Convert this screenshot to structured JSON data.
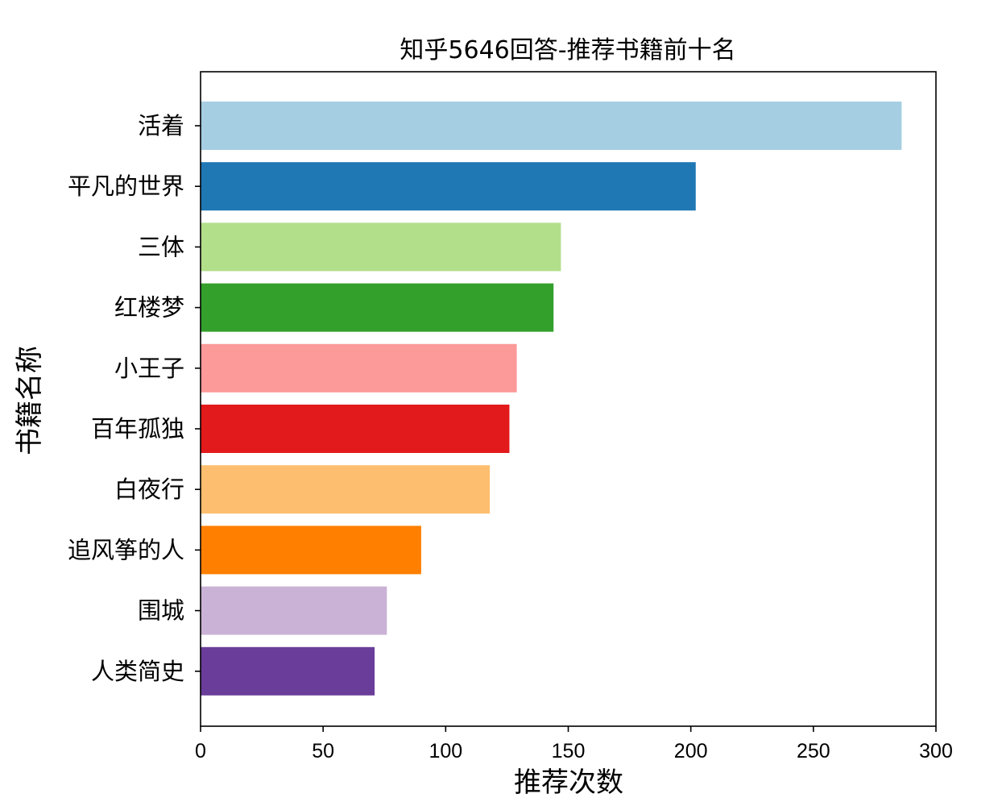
{
  "chart_data": {
    "type": "bar",
    "orientation": "horizontal",
    "title": "知乎5646回答-推荐书籍前十名",
    "xlabel": "推荐次数",
    "ylabel": "书籍名称",
    "categories": [
      "活着",
      "平凡的世界",
      "三体",
      "红楼梦",
      "小王子",
      "百年孤独",
      "白夜行",
      "追风筝的人",
      "围城",
      "人类简史"
    ],
    "values": [
      286,
      202,
      147,
      144,
      129,
      126,
      118,
      90,
      76,
      71
    ],
    "colors": [
      "#a6cee3",
      "#1f78b4",
      "#b2df8a",
      "#33a02c",
      "#fb9a99",
      "#e31a1c",
      "#fdbf6f",
      "#ff7f00",
      "#cab2d6",
      "#6a3d9a"
    ],
    "xlim": [
      0,
      300
    ],
    "xticks": [
      0,
      50,
      100,
      150,
      200,
      250,
      300
    ],
    "grid": false,
    "legend": "none"
  }
}
